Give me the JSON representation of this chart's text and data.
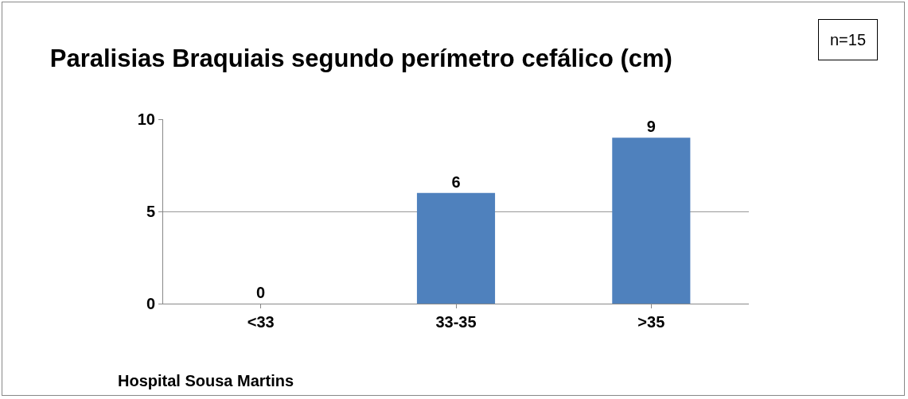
{
  "chart_data": {
    "type": "bar",
    "title": "Paralisias Braquiais segundo perímetro cefálico (cm)",
    "categories": [
      "<33",
      "33-35",
      ">35"
    ],
    "values": [
      0,
      6,
      9
    ],
    "color": "#4f81bd",
    "ylim": [
      0,
      10
    ],
    "yticks": [
      0,
      5,
      10
    ],
    "grid": "y",
    "data_labels": true,
    "annotations": [
      "n=15",
      "Hospital Sousa Martins"
    ]
  }
}
